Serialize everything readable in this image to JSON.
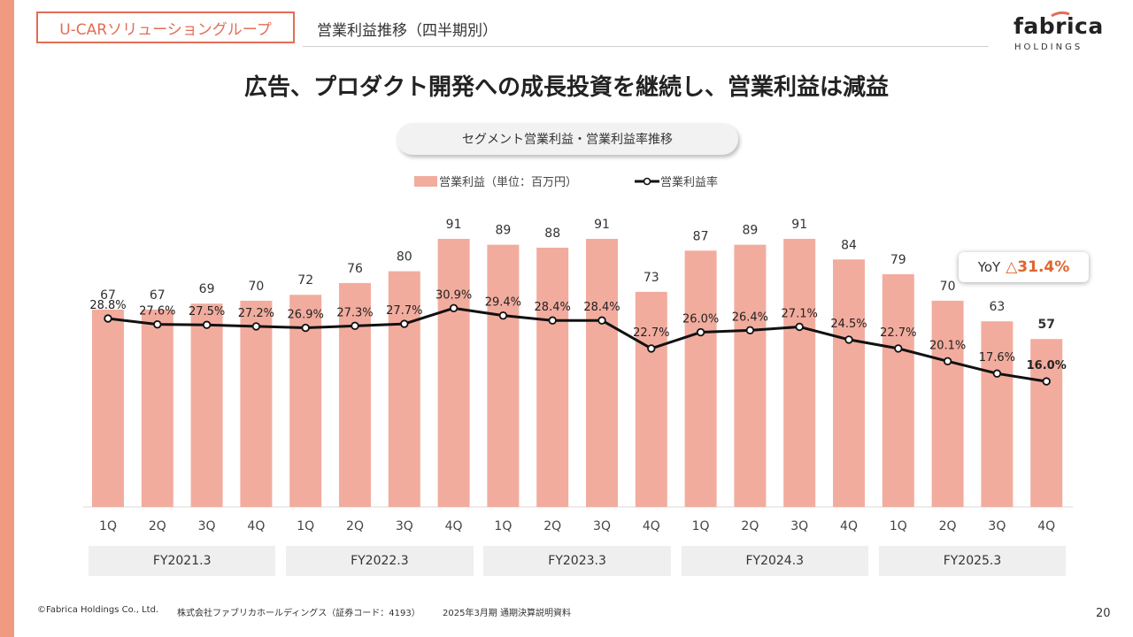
{
  "header": {
    "segment_label": "U-CARソリューショングループ",
    "title": "営業利益推移（四半期別）",
    "logo_name": "fabrica",
    "logo_sub": "HOLDINGS"
  },
  "headline": "広告、プロダクト開発への成長投資を継続し、営業利益は減益",
  "chart_title": "セグメント営業利益・営業利益率推移",
  "legend": {
    "bar_label": "営業利益（単位：百万円）",
    "line_label": "営業利益率"
  },
  "yoy": {
    "label": "YoY",
    "value": "△31.4%"
  },
  "colors": {
    "bar": "#F2AC9E",
    "line": "#111111",
    "accent": "#E26D56",
    "yoy": "#E0652E",
    "left_bar": "#F19A82"
  },
  "chart_data": {
    "type": "bar",
    "categories": [
      "1Q",
      "2Q",
      "3Q",
      "4Q",
      "1Q",
      "2Q",
      "3Q",
      "4Q",
      "1Q",
      "2Q",
      "3Q",
      "4Q",
      "1Q",
      "2Q",
      "3Q",
      "4Q",
      "1Q",
      "2Q",
      "3Q",
      "4Q"
    ],
    "groups": [
      "FY2021.3",
      "FY2022.3",
      "FY2023.3",
      "FY2024.3",
      "FY2025.3"
    ],
    "series": [
      {
        "name": "営業利益（単位：百万円）",
        "type": "bar",
        "values": [
          67,
          67,
          69,
          70,
          72,
          76,
          80,
          91,
          89,
          88,
          91,
          73,
          87,
          89,
          91,
          84,
          79,
          70,
          63,
          57
        ],
        "labels": [
          "67",
          "67",
          "69",
          "70",
          "72",
          "76",
          "80",
          "91",
          "89",
          "88",
          "91",
          "73",
          "87",
          "89",
          "91",
          "84",
          "79",
          "70",
          "63",
          "57"
        ]
      },
      {
        "name": "営業利益率",
        "type": "line",
        "values": [
          28.8,
          27.6,
          27.5,
          27.2,
          26.9,
          27.3,
          27.7,
          30.9,
          29.4,
          28.4,
          28.4,
          22.7,
          26.0,
          26.4,
          27.1,
          24.5,
          22.7,
          20.1,
          17.6,
          16.0
        ],
        "labels": [
          "28.8%",
          "27.6%",
          "27.5%",
          "27.2%",
          "26.9%",
          "27.3%",
          "27.7%",
          "30.9%",
          "29.4%",
          "28.4%",
          "28.4%",
          "22.7%",
          "26.0%",
          "26.4%",
          "27.1%",
          "24.5%",
          "22.7%",
          "20.1%",
          "17.6%",
          "16.0%"
        ]
      }
    ],
    "bar_ylim": [
      0,
      100
    ],
    "line_ylim": [
      -9,
      45
    ],
    "grid": false,
    "legend_position": "top-center"
  },
  "footer": {
    "copyright": "©Fabrica Holdings Co., Ltd.",
    "company": "株式会社ファブリカホールディングス（証券コード：4193）",
    "doc": "2025年3月期 通期決算説明資料",
    "page": "20"
  }
}
